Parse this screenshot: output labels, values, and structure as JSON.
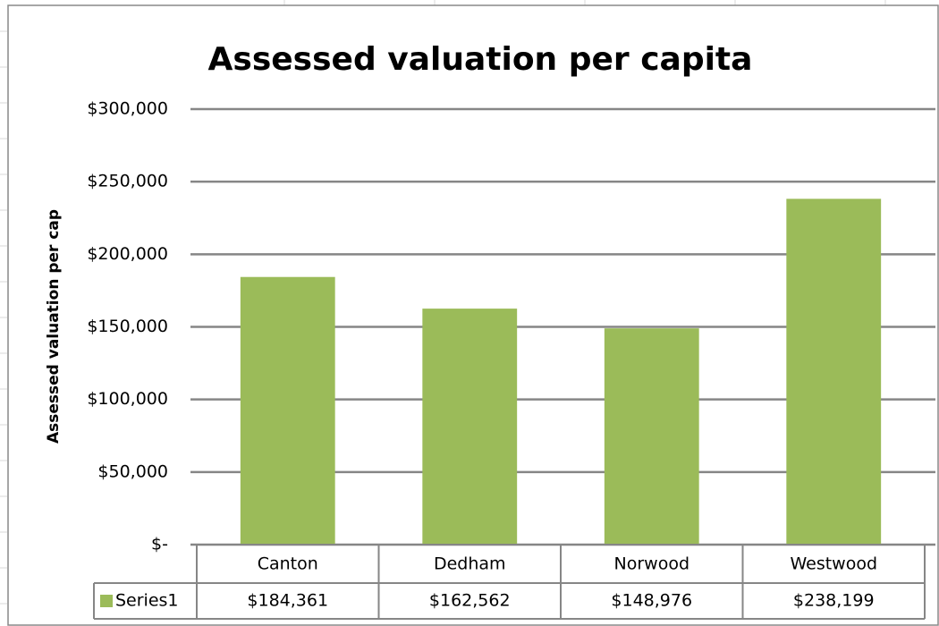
{
  "chart_data": {
    "type": "bar",
    "title": "Assessed valuation per capita",
    "y_label": "Assessed valuation per cap",
    "categories": [
      "Canton",
      "Dedham",
      "Norwood",
      "Westwood"
    ],
    "series": [
      {
        "name": "Series1",
        "color": "#9bbb59",
        "values": [
          184361,
          162562,
          148976,
          238199
        ],
        "value_labels": [
          "$184,361",
          "$162,562",
          "$148,976",
          "$238,199"
        ]
      }
    ],
    "ylim": [
      0,
      300000
    ],
    "yticks": [
      {
        "value": 0,
        "label": "$-"
      },
      {
        "value": 50000,
        "label": "$50,000"
      },
      {
        "value": 100000,
        "label": "$100,000"
      },
      {
        "value": 150000,
        "label": "$150,000"
      },
      {
        "value": 200000,
        "label": "$200,000"
      },
      {
        "value": 250000,
        "label": "$250,000"
      },
      {
        "value": 300000,
        "label": "$300,000"
      }
    ],
    "grid": true
  }
}
